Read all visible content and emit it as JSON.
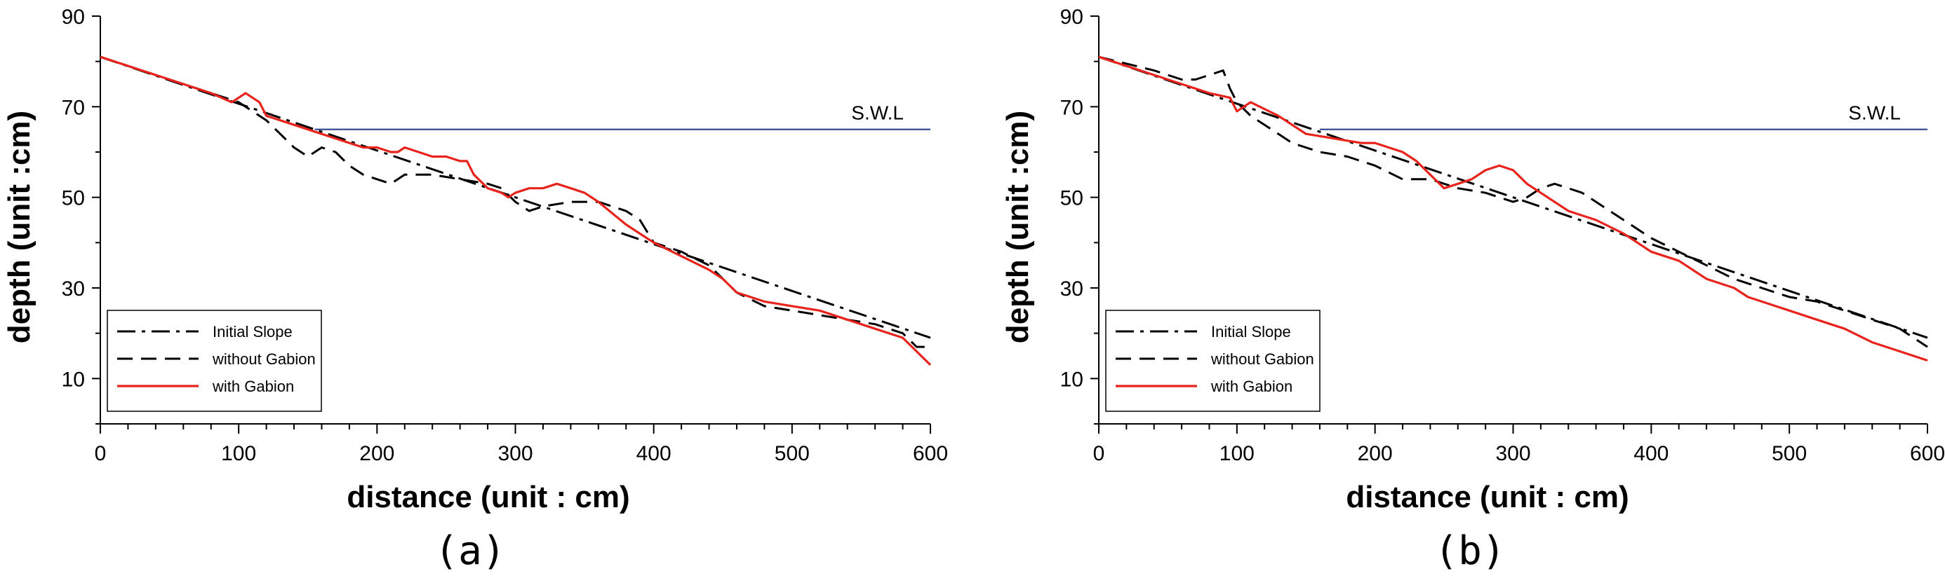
{
  "chart_data": [
    {
      "type": "line",
      "panel_label": "(a)",
      "title": "",
      "xlabel": "distance (unit : cm)",
      "ylabel": "depth (unit :cm)",
      "xlim": [
        0,
        600
      ],
      "ylim": [
        0,
        90
      ],
      "x_ticks": [
        "0",
        "100",
        "200",
        "300",
        "400",
        "500",
        "600"
      ],
      "y_ticks": [
        "10",
        "30",
        "50",
        "70",
        "90"
      ],
      "grid": false,
      "legend_position": "bottom-left",
      "reference_line": {
        "label": "S.W.L",
        "x_start": 155,
        "x_end": 600,
        "y": 65,
        "color": "#2d3f8f"
      },
      "series": [
        {
          "name": "Initial Slope",
          "style": "dash-dot",
          "color": "#000000",
          "x": [
            0,
            600
          ],
          "y": [
            81,
            19
          ]
        },
        {
          "name": "without Gabion",
          "style": "dashed",
          "color": "#000000",
          "x": [
            0,
            40,
            80,
            100,
            110,
            120,
            130,
            140,
            150,
            160,
            170,
            180,
            190,
            200,
            210,
            220,
            240,
            260,
            280,
            290,
            300,
            310,
            320,
            340,
            360,
            380,
            390,
            400,
            420,
            440,
            460,
            480,
            500,
            520,
            540,
            560,
            580,
            590,
            600
          ],
          "y": [
            81,
            77,
            73,
            71,
            69,
            67,
            64,
            61,
            59,
            61,
            60,
            57,
            55,
            54,
            53,
            55,
            55,
            54,
            53,
            52,
            49,
            47,
            48,
            49,
            49,
            47,
            45,
            40,
            38,
            35,
            29,
            26,
            25,
            24,
            23,
            22,
            20,
            17,
            17
          ]
        },
        {
          "name": "with Gabion",
          "style": "solid",
          "color": "#e8231c",
          "x": [
            0,
            50,
            80,
            95,
            100,
            105,
            110,
            115,
            120,
            130,
            150,
            170,
            190,
            200,
            210,
            215,
            220,
            230,
            240,
            250,
            260,
            265,
            270,
            280,
            290,
            295,
            300,
            310,
            320,
            330,
            340,
            350,
            360,
            380,
            400,
            420,
            440,
            450,
            460,
            480,
            500,
            520,
            540,
            560,
            580,
            590,
            600
          ],
          "y": [
            81,
            76,
            73,
            71,
            72,
            73,
            72,
            71,
            68,
            67,
            65,
            63,
            61,
            61,
            60,
            60,
            61,
            60,
            59,
            59,
            58,
            58,
            55,
            52,
            51,
            50,
            51,
            52,
            52,
            53,
            52,
            51,
            49,
            44,
            40,
            37,
            34,
            32,
            29,
            27,
            26,
            25,
            23,
            21,
            19,
            16,
            13
          ]
        }
      ]
    },
    {
      "type": "line",
      "panel_label": "(b)",
      "title": "",
      "xlabel": "distance (unit : cm)",
      "ylabel": "depth (unit :cm)",
      "xlim": [
        0,
        600
      ],
      "ylim": [
        0,
        90
      ],
      "x_ticks": [
        "0",
        "100",
        "200",
        "300",
        "400",
        "500",
        "600"
      ],
      "y_ticks": [
        "10",
        "30",
        "50",
        "70",
        "90"
      ],
      "grid": false,
      "legend_position": "bottom-left",
      "reference_line": {
        "label": "S.W.L",
        "x_start": 160,
        "x_end": 600,
        "y": 65,
        "color": "#2d3f8f"
      },
      "series": [
        {
          "name": "Initial Slope",
          "style": "dash-dot",
          "color": "#000000",
          "x": [
            0,
            600
          ],
          "y": [
            81,
            19
          ]
        },
        {
          "name": "without Gabion",
          "style": "dashed",
          "color": "#000000",
          "x": [
            0,
            40,
            60,
            70,
            80,
            90,
            95,
            100,
            110,
            120,
            140,
            160,
            180,
            200,
            220,
            240,
            250,
            260,
            280,
            300,
            310,
            320,
            330,
            340,
            350,
            360,
            380,
            400,
            420,
            440,
            460,
            480,
            500,
            520,
            540,
            560,
            580,
            600
          ],
          "y": [
            81,
            78,
            76,
            76,
            77,
            78,
            74,
            71,
            68,
            66,
            62,
            60,
            59,
            57,
            54,
            54,
            53,
            52,
            51,
            49,
            50,
            52,
            53,
            52,
            51,
            49,
            45,
            41,
            38,
            35,
            32,
            30,
            28,
            27,
            25,
            23,
            21,
            17
          ]
        },
        {
          "name": "with Gabion",
          "style": "solid",
          "color": "#e8231c",
          "x": [
            0,
            50,
            80,
            95,
            100,
            105,
            110,
            130,
            150,
            170,
            190,
            200,
            220,
            230,
            240,
            250,
            260,
            270,
            280,
            290,
            300,
            310,
            320,
            340,
            360,
            380,
            400,
            420,
            440,
            460,
            470,
            480,
            500,
            520,
            540,
            560,
            580,
            600
          ],
          "y": [
            81,
            76,
            73,
            72,
            69,
            70,
            71,
            68,
            64,
            63,
            62,
            62,
            60,
            58,
            55,
            52,
            53,
            54,
            56,
            57,
            56,
            53,
            51,
            47,
            45,
            42,
            38,
            36,
            32,
            30,
            28,
            27,
            25,
            23,
            21,
            18,
            16,
            14
          ]
        }
      ]
    }
  ]
}
